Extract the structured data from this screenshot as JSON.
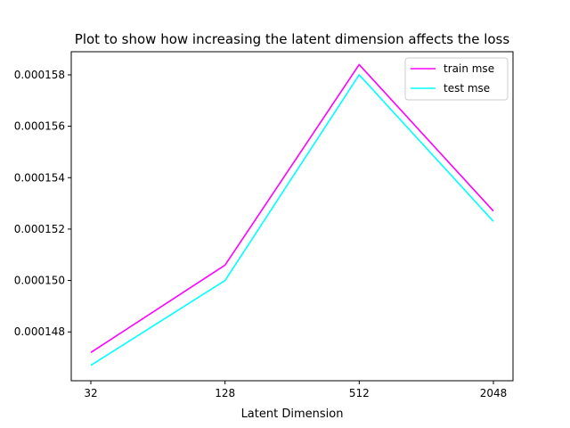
{
  "chart_data": {
    "type": "line",
    "title": "Plot to show how increasing the latent dimension affects the loss",
    "xlabel": "Latent Dimension",
    "ylabel": "",
    "x": [
      "32",
      "128",
      "512",
      "2048"
    ],
    "x_scale": "log2",
    "ylim": [
      0.0001461,
      0.0001589
    ],
    "yticks": [
      0.000148,
      0.00015,
      0.000152,
      0.000154,
      0.000156,
      0.000158
    ],
    "ytick_labels": [
      "0.000148",
      "0.000150",
      "0.000152",
      "0.000154",
      "0.000156",
      "0.000158"
    ],
    "grid": false,
    "legend_position": "top-right",
    "series": [
      {
        "name": "train mse",
        "color": "#ff00ff",
        "values": [
          0.0001472,
          0.0001506,
          0.0001584,
          0.0001527
        ]
      },
      {
        "name": "test mse",
        "color": "#00ffff",
        "values": [
          0.0001467,
          0.00015,
          0.000158,
          0.0001523
        ]
      }
    ]
  }
}
